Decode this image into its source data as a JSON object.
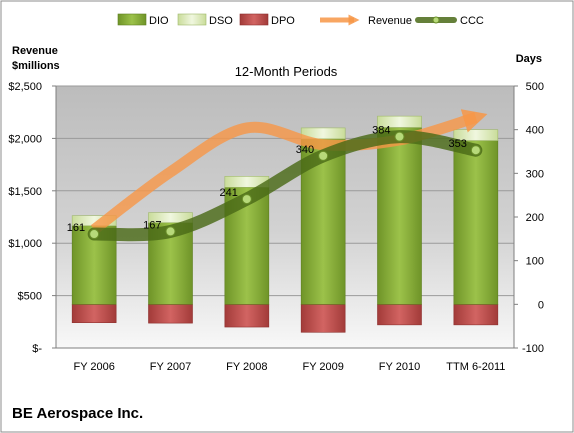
{
  "chart_data": {
    "type": "bar",
    "title": "12-Month Periods",
    "company": "BE Aerospace Inc.",
    "y_left_label": [
      "Revenue",
      "$millions"
    ],
    "y_right_label": "Days",
    "categories": [
      "FY 2006",
      "FY 2007",
      "FY 2008",
      "FY 2009",
      "FY 2010",
      "TTM 6-2011"
    ],
    "y_left": {
      "min": 0,
      "max": 2500,
      "ticks": [
        0,
        500,
        1000,
        1500,
        2000,
        2500
      ],
      "tick_labels": [
        "$-",
        "$500",
        "$1,000",
        "$1,500",
        "$2,000",
        "$2,500"
      ]
    },
    "y_right": {
      "min": -100,
      "max": 500,
      "ticks": [
        -100,
        0,
        100,
        200,
        300,
        400,
        500
      ],
      "tick_labels": [
        "-100",
        "0",
        "100",
        "200",
        "300",
        "400",
        "500"
      ]
    },
    "legend": [
      "DIO",
      "DSO",
      "DPO",
      "Revenue",
      "CCC"
    ],
    "legend_position": "top",
    "series": [
      {
        "name": "DIO",
        "axis": "right",
        "type": "stacked-bar",
        "color": "#8fb43b",
        "values": [
          180,
          187,
          268,
          379,
          405,
          375
        ]
      },
      {
        "name": "DSO",
        "axis": "right",
        "type": "stacked-bar",
        "color": "#dcebb8",
        "values": [
          23,
          23,
          25,
          25,
          26,
          25
        ]
      },
      {
        "name": "DPO",
        "axis": "right",
        "type": "stacked-bar",
        "color": "#c0504d",
        "values": [
          -42,
          -43,
          -52,
          -64,
          -47,
          -47
        ]
      },
      {
        "name": "Revenue",
        "axis": "left",
        "type": "line",
        "color": "#f79646",
        "values": [
          1130,
          1680,
          2100,
          1940,
          1985,
          2200
        ]
      },
      {
        "name": "CCC",
        "axis": "right",
        "type": "line",
        "color": "#5a7a1e",
        "values": [
          161,
          167,
          241,
          340,
          384,
          353
        ]
      }
    ],
    "data_labels": [
      "161",
      "167",
      "241",
      "340",
      "384",
      "353"
    ],
    "grid": true
  }
}
